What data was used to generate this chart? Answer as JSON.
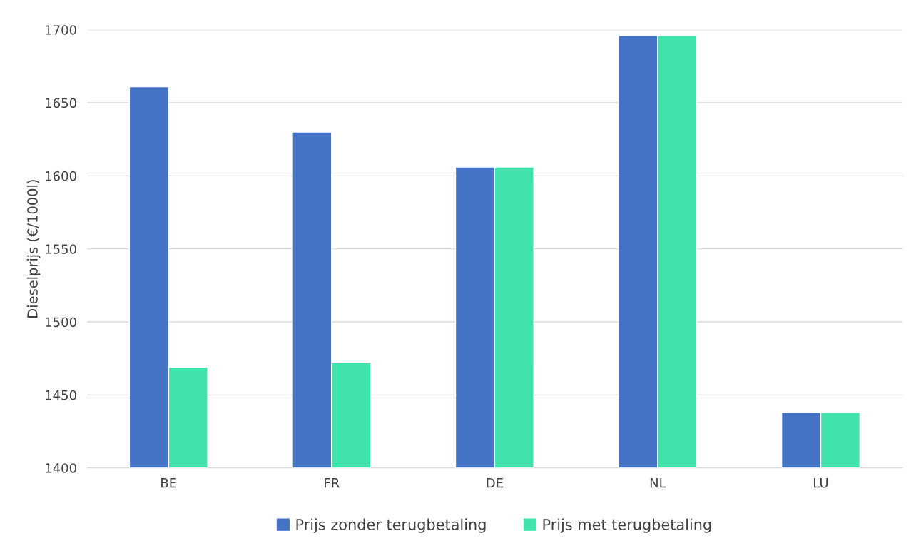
{
  "chart_data": {
    "type": "bar",
    "ylabel": "Dieselprijs (€/1000l)",
    "categories": [
      "BE",
      "FR",
      "DE",
      "NL",
      "LU"
    ],
    "series": [
      {
        "name": "Prijs zonder terugbetaling",
        "color": "#4472c4",
        "values": [
          1661,
          1630,
          1606,
          1696,
          1438
        ]
      },
      {
        "name": "Prijs met terugbetaling",
        "color": "#40e3ac",
        "values": [
          1469,
          1472,
          1606,
          1696,
          1438
        ]
      }
    ],
    "ylim": [
      1400,
      1700
    ],
    "yticks": [
      1400,
      1450,
      1500,
      1550,
      1600,
      1650,
      1700
    ],
    "grid": "y",
    "legend": "bottom"
  }
}
